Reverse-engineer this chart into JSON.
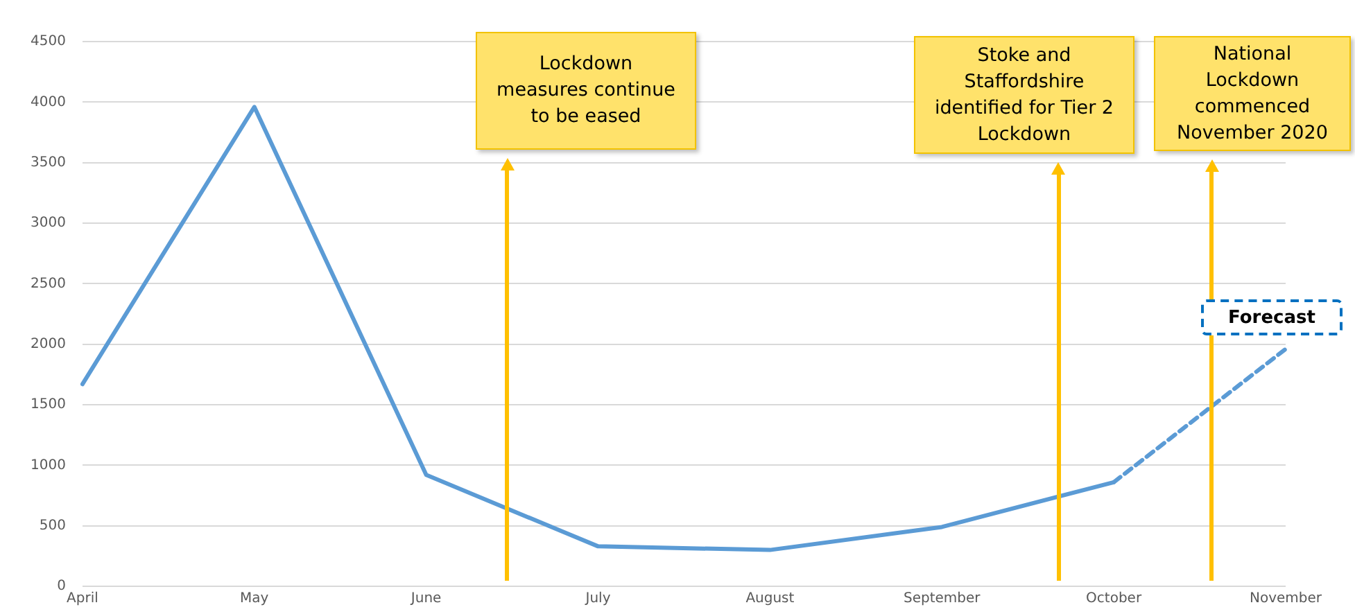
{
  "chart_data": {
    "type": "line",
    "categories": [
      "April",
      "May",
      "June",
      "July",
      "August",
      "September",
      "October",
      "November"
    ],
    "series": [
      {
        "color": "#5b9bd5",
        "line_style": "solid",
        "values": [
          1670,
          3960,
          920,
          330,
          300,
          490,
          860,
          null
        ]
      },
      {
        "color": "#5b9bd5",
        "line_style": "dashed",
        "values": [
          null,
          null,
          null,
          null,
          null,
          null,
          860,
          1960
        ]
      }
    ],
    "ylim": [
      0,
      4500
    ],
    "yticks": [
      0,
      500,
      1000,
      1500,
      2000,
      2500,
      3000,
      3500,
      4000,
      4500
    ],
    "grid": "y",
    "legend": false,
    "marker": "none",
    "annotations": [
      "Lockdown measures continue to be eased",
      "Stoke and Staffordshire identified for Tier 2 Lockdown",
      "National Lockdown commenced November 2020",
      "Forecast"
    ]
  }
}
